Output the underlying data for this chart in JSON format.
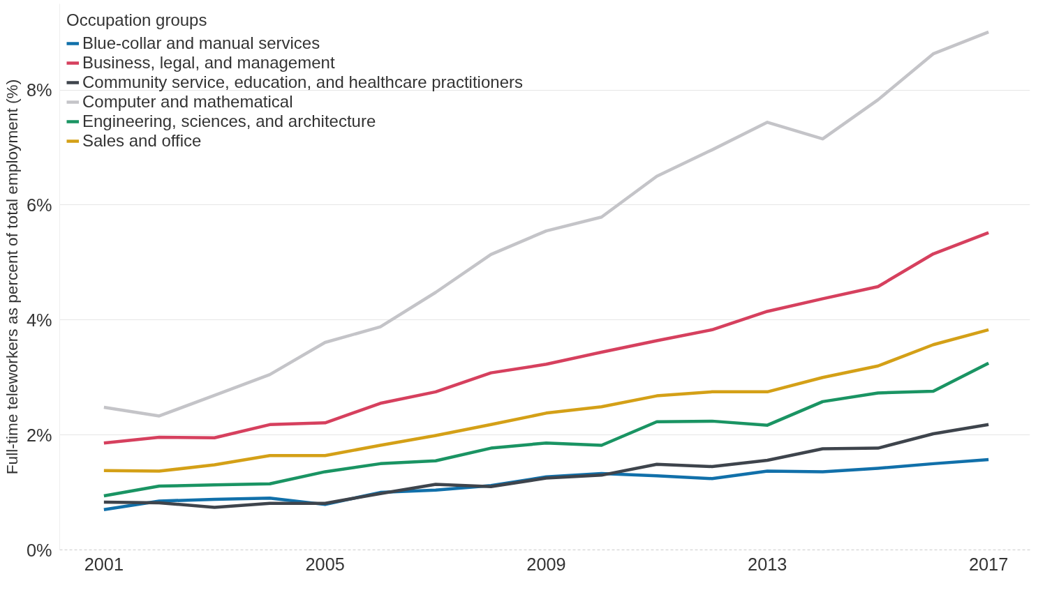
{
  "chart_data": {
    "type": "line",
    "ylabel": "Full-time teleworkers as percent of total employment (%)",
    "legend_title": "Occupation groups",
    "legend": "top left",
    "grid": "y",
    "line_style": "solid",
    "marker": "none",
    "x": [
      2001,
      2002,
      2003,
      2004,
      2005,
      2006,
      2007,
      2008,
      2009,
      2010,
      2011,
      2012,
      2013,
      2014,
      2015,
      2016,
      2017
    ],
    "xlim": [
      2000.2,
      2017.75
    ],
    "xticks": [
      2001,
      2005,
      2009,
      2013,
      2017
    ],
    "ylim": [
      0,
      9.5
    ],
    "yticks": [
      {
        "value": 0,
        "label": "0%"
      },
      {
        "value": 2,
        "label": "2%"
      },
      {
        "value": 4,
        "label": "4%"
      },
      {
        "value": 6,
        "label": "6%"
      },
      {
        "value": 8,
        "label": "8%"
      }
    ],
    "series": [
      {
        "name": "Blue-collar and manual services",
        "color": "#1170aa",
        "values": [
          0.7,
          0.85,
          0.88,
          0.9,
          0.79,
          1.0,
          1.04,
          1.12,
          1.27,
          1.33,
          1.29,
          1.24,
          1.37,
          1.36,
          1.42,
          1.5,
          1.57
        ]
      },
      {
        "name": "Business, legal, and management",
        "color": "#d6405e",
        "values": [
          1.86,
          1.96,
          1.95,
          2.18,
          2.21,
          2.55,
          2.75,
          3.08,
          3.23,
          3.44,
          3.64,
          3.83,
          4.15,
          4.37,
          4.58,
          5.15,
          5.52
        ]
      },
      {
        "name": "Community service, education, and healthcare practitioners",
        "color": "#3e444c",
        "values": [
          0.83,
          0.82,
          0.74,
          0.81,
          0.81,
          0.98,
          1.14,
          1.1,
          1.25,
          1.3,
          1.49,
          1.45,
          1.56,
          1.76,
          1.77,
          2.02,
          2.18
        ]
      },
      {
        "name": "Computer and mathematical",
        "color": "#c4c4c8",
        "values": [
          2.48,
          2.33,
          2.69,
          3.05,
          3.61,
          3.88,
          4.48,
          5.14,
          5.55,
          5.79,
          6.5,
          6.96,
          7.44,
          7.15,
          7.83,
          8.63,
          9.01
        ]
      },
      {
        "name": "Engineering, sciences, and architecture",
        "color": "#1a9463",
        "values": [
          0.94,
          1.11,
          1.13,
          1.15,
          1.36,
          1.5,
          1.55,
          1.77,
          1.86,
          1.82,
          2.23,
          2.24,
          2.17,
          2.58,
          2.73,
          2.76,
          3.25
        ]
      },
      {
        "name": "Sales and office",
        "color": "#d4a017",
        "values": [
          1.38,
          1.37,
          1.48,
          1.64,
          1.64,
          1.82,
          1.99,
          2.18,
          2.38,
          2.49,
          2.68,
          2.75,
          2.75,
          3.0,
          3.2,
          3.57,
          3.83
        ]
      }
    ]
  }
}
